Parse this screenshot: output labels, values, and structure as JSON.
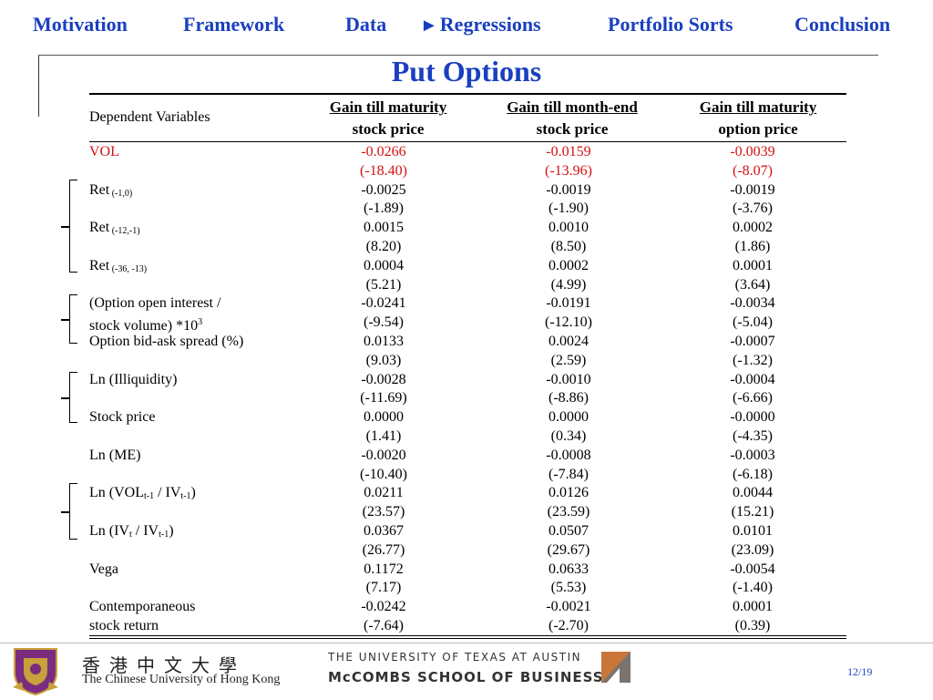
{
  "nav": {
    "items": [
      "Motivation",
      "Framework",
      "Data",
      "Regressions",
      "Portfolio Sorts",
      "Conclusion"
    ],
    "arrow": "►"
  },
  "title": "Put Options",
  "table": {
    "dep_label": "Dependent Variables",
    "columns": [
      {
        "l1": "Gain till maturity",
        "l2": "stock price"
      },
      {
        "l1": "Gain till month-end",
        "l2": "stock price"
      },
      {
        "l1": "Gain till maturity",
        "l2": "option price"
      }
    ],
    "rows": [
      {
        "label": "VOL",
        "coef": [
          "-0.0266",
          "-0.0159",
          "-0.0039"
        ],
        "t": [
          "(-18.40)",
          "(-13.96)",
          "(-8.07)"
        ],
        "highlight": true
      },
      {
        "label": "Ret",
        "sub": "(-1,0)",
        "coef": [
          "-0.0025",
          "-0.0019",
          "-0.0019"
        ],
        "t": [
          "(-1.89)",
          "(-1.90)",
          "(-3.76)"
        ]
      },
      {
        "label": "Ret",
        "sub": "(-12,-1)",
        "coef": [
          "0.0015",
          "0.0010",
          "0.0002"
        ],
        "t": [
          "(8.20)",
          "(8.50)",
          "(1.86)"
        ]
      },
      {
        "label": "Ret",
        "sub": "(-36, -13)",
        "coef": [
          "0.0004",
          "0.0002",
          "0.0001"
        ],
        "t": [
          "(5.21)",
          "(4.99)",
          "(3.64)"
        ]
      },
      {
        "label": "(Option open interest /",
        "label2": "stock volume) *10",
        "sup": "3",
        "coef": [
          "-0.0241",
          "-0.0191",
          "-0.0034"
        ],
        "t": [
          "(-9.54)",
          "(-12.10)",
          "(-5.04)"
        ]
      },
      {
        "label": "Option bid-ask spread (%)",
        "coef": [
          "0.0133",
          "0.0024",
          "-0.0007"
        ],
        "t": [
          "(9.03)",
          "(2.59)",
          "(-1.32)"
        ]
      },
      {
        "label": "Ln (Illiquidity)",
        "coef": [
          "-0.0028",
          "-0.0010",
          "-0.0004"
        ],
        "t": [
          "(-11.69)",
          "(-8.86)",
          "(-6.66)"
        ]
      },
      {
        "label": "Stock price",
        "coef": [
          "0.0000",
          "0.0000",
          "-0.0000"
        ],
        "t": [
          "(1.41)",
          "(0.34)",
          "(-4.35)"
        ]
      },
      {
        "label": "Ln (ME)",
        "coef": [
          "-0.0020",
          "-0.0008",
          "-0.0003"
        ],
        "t": [
          "(-10.40)",
          "(-7.84)",
          "(-6.18)"
        ]
      },
      {
        "label_parts": [
          "Ln (VOL",
          "t-1",
          " / IV",
          "t-1",
          ")"
        ],
        "coef": [
          "0.0211",
          "0.0126",
          "0.0044"
        ],
        "t": [
          "(23.57)",
          "(23.59)",
          "(15.21)"
        ]
      },
      {
        "label_parts": [
          "Ln (IV",
          "t",
          " / IV",
          "t-1",
          ")"
        ],
        "coef": [
          "0.0367",
          "0.0507",
          "0.0101"
        ],
        "t": [
          "(26.77)",
          "(29.67)",
          "(23.09)"
        ]
      },
      {
        "label": "Vega",
        "coef": [
          "0.1172",
          "0.0633",
          "-0.0054"
        ],
        "t": [
          "(7.17)",
          "(5.53)",
          "(-1.40)"
        ]
      },
      {
        "label": "Contemporaneous",
        "label2": "stock return",
        "coef": [
          "-0.0242",
          "-0.0021",
          "0.0001"
        ],
        "t": [
          "(-7.64)",
          "(-2.70)",
          "(0.39)"
        ]
      }
    ]
  },
  "footer": {
    "cuhk_cn": "香港中文大學",
    "cuhk_en": "The Chinese University of Hong Kong",
    "ut_line1": "THE UNIVERSITY OF TEXAS AT AUSTIN",
    "ut_line2": "McCOMBS SCHOOL OF BUSINESS",
    "page": "12/19"
  },
  "colors": {
    "accent": "#1a3fbf",
    "highlight": "#d41010"
  }
}
